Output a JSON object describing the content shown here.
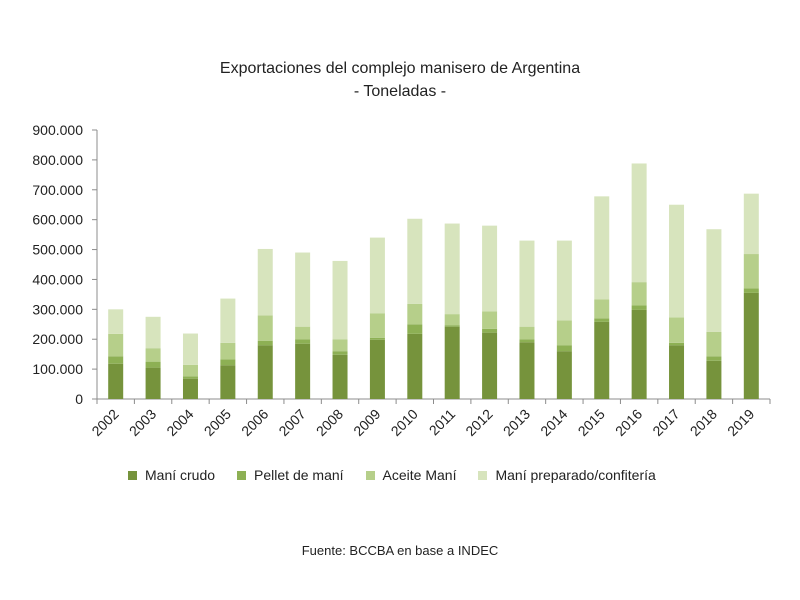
{
  "chart_data": {
    "type": "bar",
    "stacked": true,
    "title": "Exportaciones del complejo manisero de Argentina",
    "subtitle": "- Toneladas -",
    "xlabel": "",
    "ylabel": "",
    "ylim": [
      0,
      900000
    ],
    "yticks": [
      0,
      100000,
      200000,
      300000,
      400000,
      500000,
      600000,
      700000,
      800000,
      900000
    ],
    "ytick_labels": [
      "0",
      "100.000",
      "200.000",
      "300.000",
      "400.000",
      "500.000",
      "600.000",
      "700.000",
      "800.000",
      "900.000"
    ],
    "categories": [
      "2002",
      "2003",
      "2004",
      "2005",
      "2006",
      "2007",
      "2008",
      "2009",
      "2010",
      "2011",
      "2012",
      "2013",
      "2014",
      "2015",
      "2016",
      "2017",
      "2018",
      "2019"
    ],
    "series": [
      {
        "name": "Maní crudo",
        "color": "#76933c",
        "values": [
          118000,
          105000,
          68000,
          113000,
          180000,
          185000,
          148000,
          198000,
          218000,
          242000,
          222000,
          190000,
          160000,
          258000,
          298000,
          180000,
          128000,
          355000
        ]
      },
      {
        "name": "Pellet de maní",
        "color": "#8db054",
        "values": [
          25000,
          20000,
          8000,
          20000,
          15000,
          15000,
          12000,
          7000,
          32000,
          5000,
          13000,
          10000,
          20000,
          12000,
          15000,
          8000,
          15000,
          15000
        ]
      },
      {
        "name": "Aceite Maní",
        "color": "#b6cf8a",
        "values": [
          75000,
          45000,
          38000,
          55000,
          85000,
          42000,
          40000,
          82000,
          68000,
          37000,
          58000,
          42000,
          83000,
          63000,
          78000,
          85000,
          82000,
          115000
        ]
      },
      {
        "name": "Maní preparado/confitería",
        "color": "#d7e4bd",
        "values": [
          82000,
          105000,
          105000,
          148000,
          222000,
          248000,
          262000,
          253000,
          285000,
          303000,
          287000,
          288000,
          267000,
          345000,
          397000,
          377000,
          343000,
          202000
        ]
      }
    ],
    "grid": false,
    "legend_position": "bottom"
  },
  "source_note": "Fuente: BCCBA en base a INDEC"
}
